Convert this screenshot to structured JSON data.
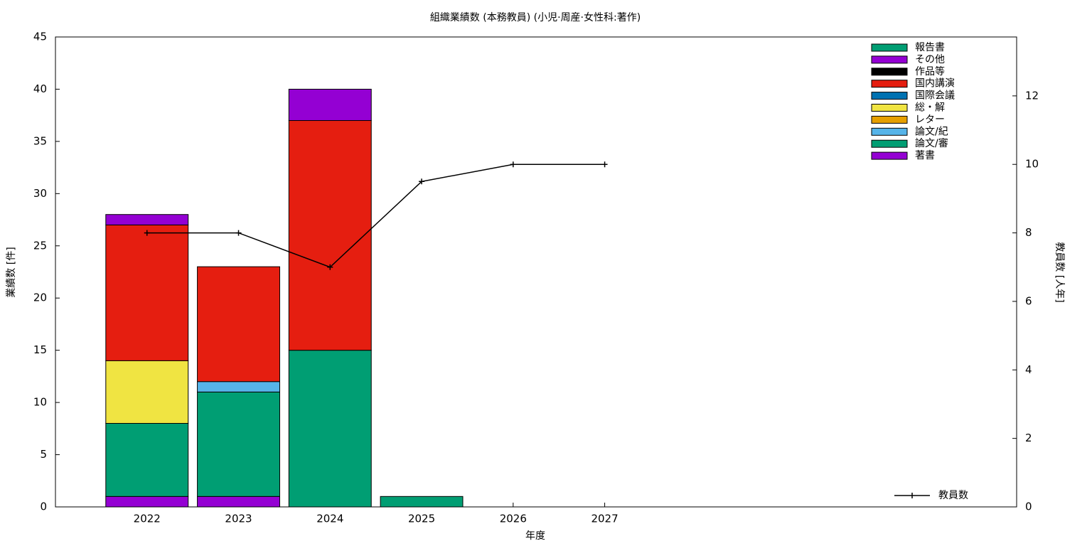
{
  "chart_data": {
    "type": "bar",
    "title": "組織業績数 (本務教員) (小児·周産·女性科:著作)",
    "x_label": "年度",
    "y_label": "業績数 [件]",
    "y2_label": "教員数 [人年]",
    "categories": [
      "2022",
      "2023",
      "2024",
      "2025",
      "2026",
      "2027"
    ],
    "stacked": true,
    "legend": "top right",
    "series": [
      {
        "name": "著書",
        "color": "#9400d3",
        "values": [
          1,
          1,
          0,
          0,
          0,
          0
        ]
      },
      {
        "name": "論文/審",
        "color": "#009e73",
        "values": [
          7,
          10,
          15,
          1,
          0,
          0
        ]
      },
      {
        "name": "論文/紀",
        "color": "#56b4e9",
        "values": [
          0,
          1,
          0,
          0,
          0,
          0
        ]
      },
      {
        "name": "レター",
        "color": "#e69f00",
        "values": [
          0,
          0,
          0,
          0,
          0,
          0
        ]
      },
      {
        "name": "総・解",
        "color": "#f0e442",
        "values": [
          6,
          0,
          0,
          0,
          0,
          0
        ]
      },
      {
        "name": "国際会議",
        "color": "#0072b2",
        "values": [
          0,
          0,
          0,
          0,
          0,
          0
        ]
      },
      {
        "name": "国内講演",
        "color": "#e51e10",
        "values": [
          13,
          11,
          22,
          0,
          0,
          0
        ]
      },
      {
        "name": "作品等",
        "color": "#000000",
        "values": [
          0,
          0,
          0,
          0,
          0,
          0
        ]
      },
      {
        "name": "その他",
        "color": "#9400d3",
        "values": [
          1,
          0,
          3,
          0,
          0,
          0
        ]
      },
      {
        "name": "報告書",
        "color": "#009e73",
        "values": [
          0,
          0,
          0,
          0,
          0,
          0
        ]
      },
      {
        "name": "教員数",
        "type": "line",
        "axis": "y2",
        "color": "#000000",
        "values": [
          8,
          8,
          7,
          9.5,
          10,
          10
        ]
      }
    ],
    "ylim": [
      0,
      45
    ],
    "yticks": [
      0,
      5,
      10,
      15,
      20,
      25,
      30,
      35,
      40,
      45
    ],
    "y2lim": [
      0,
      13.72
    ],
    "y2ticks": [
      0,
      2,
      4,
      6,
      8,
      10,
      12
    ]
  }
}
